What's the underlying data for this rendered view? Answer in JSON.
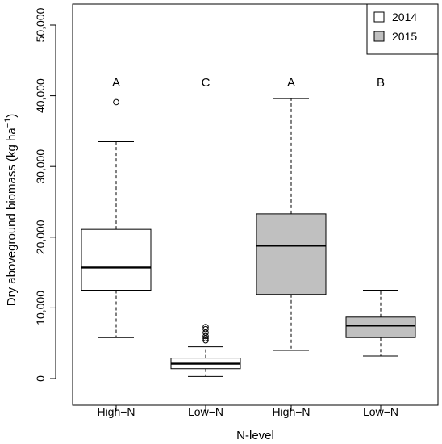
{
  "chart_data": {
    "type": "boxplot",
    "title": "",
    "xlabel": "N-level",
    "ylabel": {
      "main": "Dry aboveground biomass (kg ha",
      "superscript": "−1",
      "suffix": ")"
    },
    "ylim": [
      0,
      50000
    ],
    "yticks": [
      {
        "value": 0,
        "label": "0"
      },
      {
        "value": 10000,
        "label": "10,000"
      },
      {
        "value": 20000,
        "label": "20,000"
      },
      {
        "value": 30000,
        "label": "30,000"
      },
      {
        "value": 40000,
        "label": "40,000"
      },
      {
        "value": 50000,
        "label": "50,000"
      }
    ],
    "categories": [
      "High−N",
      "Low−N",
      "High−N",
      "Low−N"
    ],
    "legend": {
      "placement": "top-right",
      "entries": [
        {
          "label": "2014",
          "color": "#ffffff"
        },
        {
          "label": "2015",
          "color": "#c0c0c0"
        }
      ]
    },
    "boxes": [
      {
        "category": "High−N",
        "year": "2014",
        "color": "#ffffff",
        "whisker_low": 5800,
        "q1": 12500,
        "median": 15700,
        "q3": 21100,
        "whisker_high": 33500,
        "outliers": [
          39100
        ],
        "letter": "A"
      },
      {
        "category": "Low−N",
        "year": "2014",
        "color": "#ffffff",
        "whisker_low": 300,
        "q1": 1400,
        "median": 2100,
        "q3": 2900,
        "whisker_high": 4500,
        "outliers": [
          5400,
          5700,
          6000,
          6500,
          7000,
          7300
        ],
        "letter": "C"
      },
      {
        "category": "High−N",
        "year": "2015",
        "color": "#c0c0c0",
        "whisker_low": 4000,
        "q1": 11900,
        "median": 18800,
        "q3": 23300,
        "whisker_high": 39600,
        "outliers": [],
        "letter": "A"
      },
      {
        "category": "Low−N",
        "year": "2015",
        "color": "#c0c0c0",
        "whisker_low": 3200,
        "q1": 5800,
        "median": 7500,
        "q3": 8700,
        "whisker_high": 12500,
        "outliers": [],
        "letter": "B"
      }
    ],
    "grid": false
  }
}
